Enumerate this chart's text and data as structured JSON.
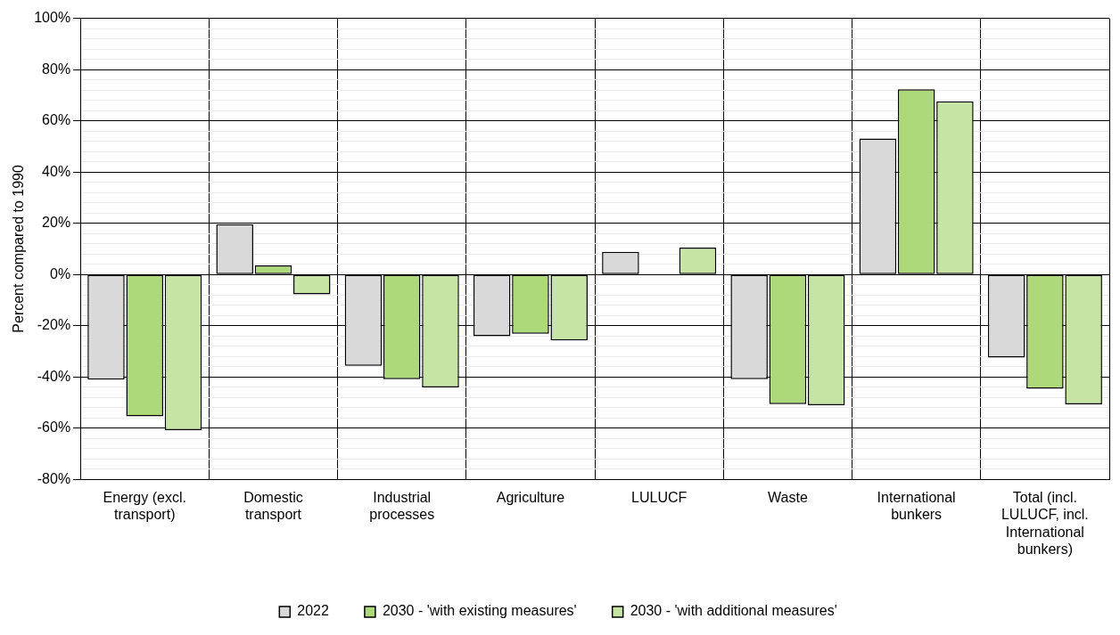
{
  "chart_data": {
    "type": "bar",
    "ylabel": "Percent compared to 1990",
    "categories": [
      "Energy (excl. transport)",
      "Domestic transport",
      "Industrial processes",
      "Agriculture",
      "LULUCF",
      "Waste",
      "International bunkers",
      "Total (incl. LULUCF, incl. International bunkers)"
    ],
    "series": [
      {
        "name": "2022",
        "color": "#d9d9d9",
        "values": [
          -41.1,
          19.6,
          -35.7,
          -24.1,
          8.8,
          -40.9,
          53.1,
          -32.5
        ]
      },
      {
        "name": "2030 - 'with existing measures'",
        "color": "#aed97a",
        "values": [
          -55.4,
          3.5,
          -40.9,
          -23.2,
          null,
          -50.6,
          72.3,
          -44.6
        ]
      },
      {
        "name": "2030 - 'with additional measures'",
        "color": "#c6e4a3",
        "values": [
          -60.8,
          -7.8,
          -44.1,
          -25.8,
          10.5,
          -51.1,
          67.6,
          -50.7
        ]
      }
    ],
    "ylim": [
      -80,
      100
    ],
    "yticks": [
      {
        "value": -80,
        "label": "-80%"
      },
      {
        "value": -76,
        "label": null
      },
      {
        "value": -72,
        "label": null
      },
      {
        "value": -68,
        "label": null
      },
      {
        "value": -64,
        "label": null
      },
      {
        "value": -60,
        "label": "-60%"
      },
      {
        "value": -56,
        "label": null
      },
      {
        "value": -52,
        "label": null
      },
      {
        "value": -48,
        "label": null
      },
      {
        "value": -44,
        "label": null
      },
      {
        "value": -40,
        "label": "-40%"
      },
      {
        "value": -36,
        "label": null
      },
      {
        "value": -32,
        "label": null
      },
      {
        "value": -28,
        "label": null
      },
      {
        "value": -24,
        "label": null
      },
      {
        "value": -20,
        "label": "-20%"
      },
      {
        "value": -16,
        "label": null
      },
      {
        "value": -12,
        "label": null
      },
      {
        "value": -8,
        "label": null
      },
      {
        "value": -4,
        "label": null
      },
      {
        "value": 0,
        "label": "0%"
      },
      {
        "value": 4,
        "label": null
      },
      {
        "value": 8,
        "label": null
      },
      {
        "value": 12,
        "label": null
      },
      {
        "value": 16,
        "label": null
      },
      {
        "value": 20,
        "label": "20%"
      },
      {
        "value": 24,
        "label": null
      },
      {
        "value": 28,
        "label": null
      },
      {
        "value": 32,
        "label": null
      },
      {
        "value": 36,
        "label": null
      },
      {
        "value": 40,
        "label": "40%"
      },
      {
        "value": 44,
        "label": null
      },
      {
        "value": 48,
        "label": null
      },
      {
        "value": 52,
        "label": null
      },
      {
        "value": 56,
        "label": null
      },
      {
        "value": 60,
        "label": "60%"
      },
      {
        "value": 64,
        "label": null
      },
      {
        "value": 68,
        "label": null
      },
      {
        "value": 72,
        "label": null
      },
      {
        "value": 76,
        "label": null
      },
      {
        "value": 80,
        "label": "80%"
      },
      {
        "value": 84,
        "label": null
      },
      {
        "value": 88,
        "label": null
      },
      {
        "value": 92,
        "label": null
      },
      {
        "value": 96,
        "label": null
      },
      {
        "value": 100,
        "label": "100%"
      }
    ],
    "grid": true,
    "legend": "bottom"
  }
}
